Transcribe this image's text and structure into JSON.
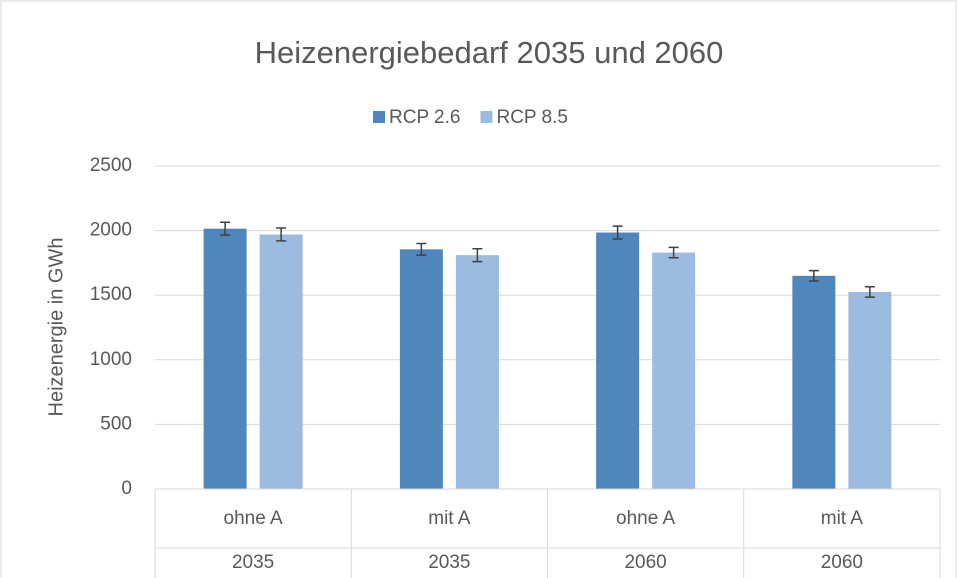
{
  "chart_data": {
    "type": "bar",
    "title": "Heizenergiebedarf 2035 und 2060",
    "y_label": "Heizenergie in GWh",
    "categories": [
      "ohne A",
      "mit A",
      "ohne A",
      "mit A"
    ],
    "category_groups": [
      "2035",
      "2035",
      "2060",
      "2060"
    ],
    "series": [
      {
        "name": "RCP 2.6",
        "color": "#4f87bd",
        "values": [
          2015,
          1855,
          1985,
          1650
        ],
        "errors": [
          50,
          45,
          50,
          40
        ]
      },
      {
        "name": "RCP 8.5",
        "color": "#9cbbe0",
        "values": [
          1970,
          1810,
          1830,
          1525
        ],
        "errors": [
          50,
          50,
          40,
          40
        ]
      }
    ],
    "ylim": [
      0,
      2500
    ],
    "yticks": [
      0,
      500,
      1000,
      1500,
      2000,
      2500
    ],
    "grid": true,
    "legend": "top"
  }
}
